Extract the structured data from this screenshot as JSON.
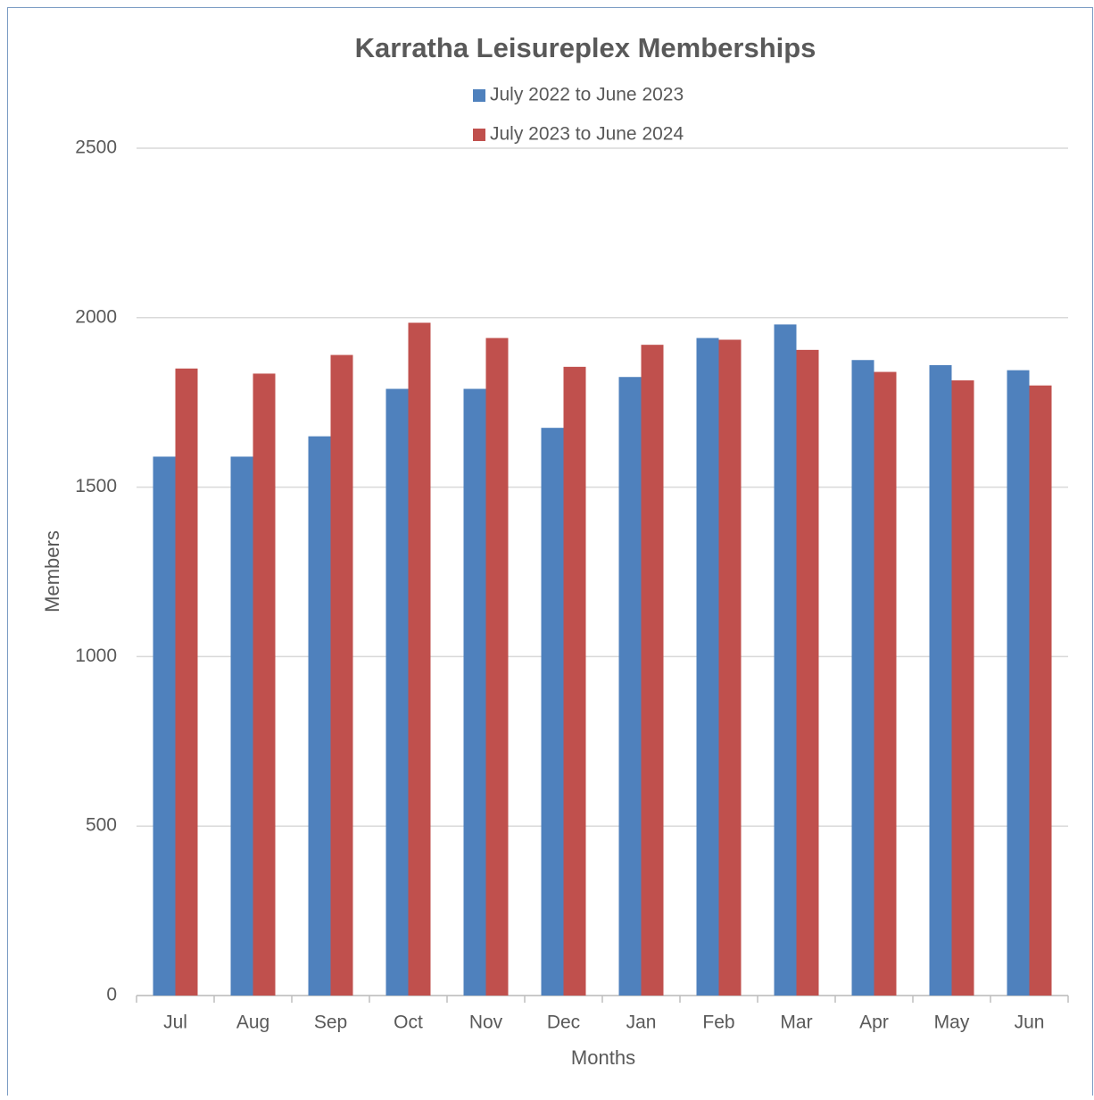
{
  "chart_data": {
    "type": "bar",
    "title": "Karratha Leisureplex Memberships",
    "x_label": "Months",
    "y_label": "Members",
    "categories": [
      "Jul",
      "Aug",
      "Sep",
      "Oct",
      "Nov",
      "Dec",
      "Jan",
      "Feb",
      "Mar",
      "Apr",
      "May",
      "Jun"
    ],
    "series": [
      {
        "name": "July 2022 to June 2023",
        "color": "#4f81bd",
        "values": [
          1590,
          1590,
          1650,
          1790,
          1790,
          1675,
          1825,
          1940,
          1980,
          1875,
          1860,
          1845
        ]
      },
      {
        "name": "July 2023 to June 2024",
        "color": "#c0504d",
        "values": [
          1850,
          1835,
          1890,
          1985,
          1940,
          1855,
          1920,
          1935,
          1905,
          1840,
          1815,
          1800
        ]
      }
    ],
    "ylim": [
      0,
      2500
    ],
    "yticks": [
      0,
      500,
      1000,
      1500,
      2000,
      2500
    ],
    "grid": true
  }
}
